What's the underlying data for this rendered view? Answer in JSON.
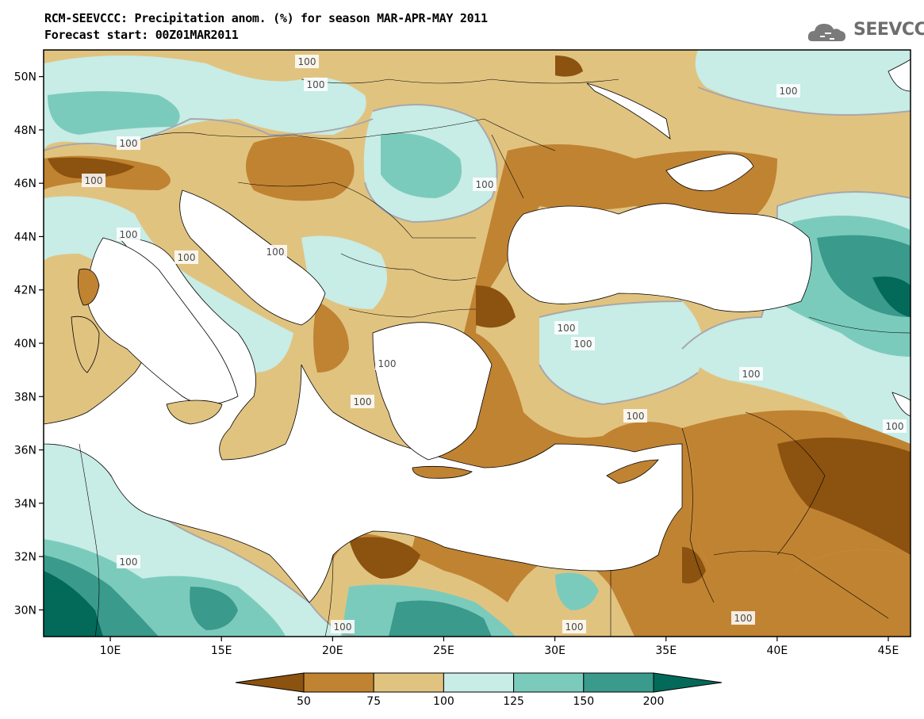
{
  "header": {
    "title_line1": "RCM-SEEVCCC: Precipitation anom. (%) for season MAR-APR-MAY 2011",
    "title_line2": "Forecast start: 00Z01MAR2011"
  },
  "logo": {
    "text": "SEEVCCC",
    "icon": "cloud-icon"
  },
  "map": {
    "lon_range": [
      7,
      46
    ],
    "lat_range": [
      29,
      51
    ],
    "lat_ticks": [
      "30N",
      "32N",
      "34N",
      "36N",
      "38N",
      "40N",
      "42N",
      "44N",
      "46N",
      "48N",
      "50N"
    ],
    "lon_ticks": [
      "10E",
      "15E",
      "20E",
      "25E",
      "30E",
      "35E",
      "40E",
      "45E"
    ],
    "contour_label": "100"
  },
  "colorbar": {
    "labels": [
      "50",
      "75",
      "100",
      "125",
      "150",
      "200"
    ],
    "colors": [
      "#8c520f",
      "#c08332",
      "#e1c380",
      "#c8ece6",
      "#7bcbbd",
      "#3a9a8c",
      "#036a5a"
    ]
  },
  "colors": {
    "dry_strong": "#8c520f",
    "dry": "#c08332",
    "dry_light": "#e1c380",
    "wet_light": "#c8ece6",
    "wet": "#7bcbbd",
    "wet_strong": "#3a9a8c",
    "wet_extreme": "#036a5a",
    "sea": "#ffffff"
  }
}
